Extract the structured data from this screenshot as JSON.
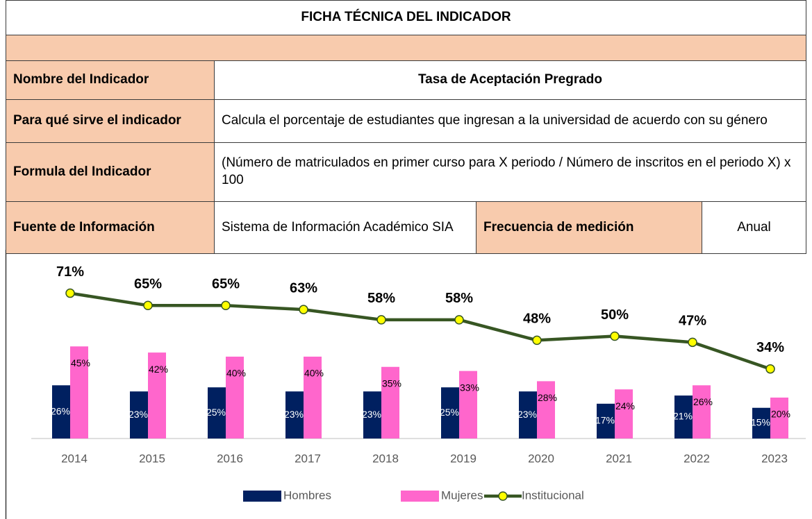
{
  "table": {
    "title": "FICHA TÉCNICA DEL INDICADOR",
    "rows": [
      [
        "Nombre del Indicador",
        "Tasa de Aceptación Pregrado"
      ],
      [
        "Para qué sirve el indicador",
        "Calcula el porcentaje de estudiantes que ingresan a la universidad de acuerdo con su género"
      ],
      [
        "Formula del Indicador",
        "(Número de matriculados en primer curso para X periodo / Número de inscritos en el periodo X) x 100"
      ],
      [
        "Fuente de Información",
        "Sistema de Información Académico SIA",
        "Frecuencia de medición",
        "Anual"
      ]
    ]
  },
  "chart_data": {
    "type": "bar",
    "categories": [
      "2014",
      "2015",
      "2016",
      "2017",
      "2018",
      "2019",
      "2020",
      "2021",
      "2022",
      "2023"
    ],
    "series": [
      {
        "name": "Hombres",
        "color": "#002060",
        "values": [
          26,
          23,
          25,
          23,
          23,
          25,
          23,
          17,
          21,
          15
        ],
        "value_labels": [
          "26%",
          "23%",
          "25%",
          "23%",
          "23%",
          "25%",
          "23%",
          "17%",
          "21%",
          "15%"
        ]
      },
      {
        "name": "Mujeres",
        "color": "#ff66cc",
        "values": [
          45,
          42,
          40,
          40,
          35,
          33,
          28,
          24,
          26,
          20
        ],
        "value_labels": [
          "45%",
          "42%",
          "40%",
          "40%",
          "35%",
          "33%",
          "28%",
          "24%",
          "26%",
          "20%"
        ]
      },
      {
        "name": "Institucional",
        "type": "line",
        "color": "#375623",
        "marker_color": "#ffff00",
        "values": [
          71,
          65,
          65,
          63,
          58,
          58,
          48,
          50,
          47,
          34
        ],
        "value_labels": [
          "71%",
          "65%",
          "65%",
          "63%",
          "58%",
          "58%",
          "48%",
          "50%",
          "47%",
          "34%"
        ]
      }
    ],
    "ylim": [
      0,
      80
    ]
  }
}
